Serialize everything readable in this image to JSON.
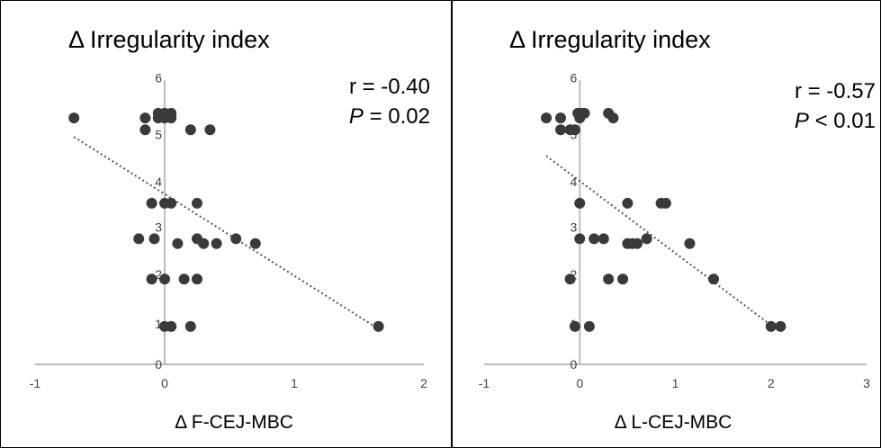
{
  "chart_data": [
    {
      "type": "scatter",
      "title": "Δ Irregularity index",
      "xlabel": "Δ F-CEJ-MBC",
      "ylabel": "",
      "xlim": [
        -1,
        2
      ],
      "ylim": [
        0,
        6
      ],
      "x_ticks": [
        "-1",
        "0",
        "1",
        "2"
      ],
      "y_ticks": [
        "0",
        "1",
        "2",
        "3",
        "4",
        "5",
        "6"
      ],
      "y_tick_values": [
        0,
        0.85,
        1.9,
        2.9,
        3.85,
        4.85,
        6.05
      ],
      "r_text": "r = -0.40",
      "p_symbol": "P",
      "p_value": "= 0.02",
      "trendline": {
        "x": [
          -0.7,
          1.65
        ],
        "y": [
          4.8,
          0.75
        ]
      },
      "points": {
        "x": [
          -0.7,
          -0.15,
          -0.15,
          -0.05,
          0,
          0.05,
          -0.05,
          0,
          0.05,
          0.2,
          0.35,
          -0.1,
          0,
          0.05,
          0.25,
          -0.2,
          -0.08,
          0.1,
          0.25,
          0.3,
          0.4,
          0.55,
          0.7,
          -0.1,
          0,
          0.15,
          0.25,
          0,
          0.05,
          0.2,
          1.65
        ],
        "y": [
          5.2,
          5.2,
          4.95,
          5.3,
          5.3,
          5.3,
          5.2,
          5.2,
          5.2,
          4.95,
          4.95,
          3.4,
          3.4,
          3.4,
          3.4,
          2.65,
          2.65,
          2.55,
          2.65,
          2.55,
          2.55,
          2.65,
          2.55,
          1.8,
          1.8,
          1.8,
          1.8,
          0.8,
          0.8,
          0.8,
          0.8
        ]
      }
    },
    {
      "type": "scatter",
      "title": "Δ Irregularity index",
      "xlabel": "Δ L-CEJ-MBC",
      "ylabel": "",
      "xlim": [
        -1,
        3
      ],
      "ylim": [
        0,
        6
      ],
      "x_ticks": [
        "-1",
        "0",
        "1",
        "2",
        "3"
      ],
      "y_ticks": [
        "0",
        "1",
        "2",
        "3",
        "4",
        "5",
        "6"
      ],
      "y_tick_values": [
        0,
        0.85,
        1.9,
        2.9,
        3.85,
        4.85,
        6.05
      ],
      "r_text": "r = -0.57",
      "p_symbol": "P",
      "p_value": "< 0.01",
      "trendline": {
        "x": [
          -0.35,
          2.05
        ],
        "y": [
          4.4,
          0.75
        ]
      },
      "points": {
        "x": [
          -0.35,
          -0.2,
          -0.2,
          -0.1,
          -0.05,
          -0.02,
          0.02,
          0.05,
          0,
          0.3,
          0.35,
          0,
          0.5,
          0.85,
          0.9,
          0,
          0.15,
          0.25,
          0.5,
          0.55,
          0.6,
          0.7,
          1.15,
          -0.1,
          0.3,
          0.45,
          1.4,
          -0.05,
          0.1,
          2.0,
          2.1
        ],
        "y": [
          5.2,
          5.2,
          4.95,
          4.95,
          4.95,
          5.3,
          5.3,
          5.3,
          5.2,
          5.3,
          5.2,
          3.4,
          3.4,
          3.4,
          3.4,
          2.65,
          2.65,
          2.65,
          2.55,
          2.55,
          2.55,
          2.65,
          2.55,
          1.8,
          1.8,
          1.8,
          1.8,
          0.8,
          0.8,
          0.8,
          0.8
        ]
      }
    }
  ]
}
